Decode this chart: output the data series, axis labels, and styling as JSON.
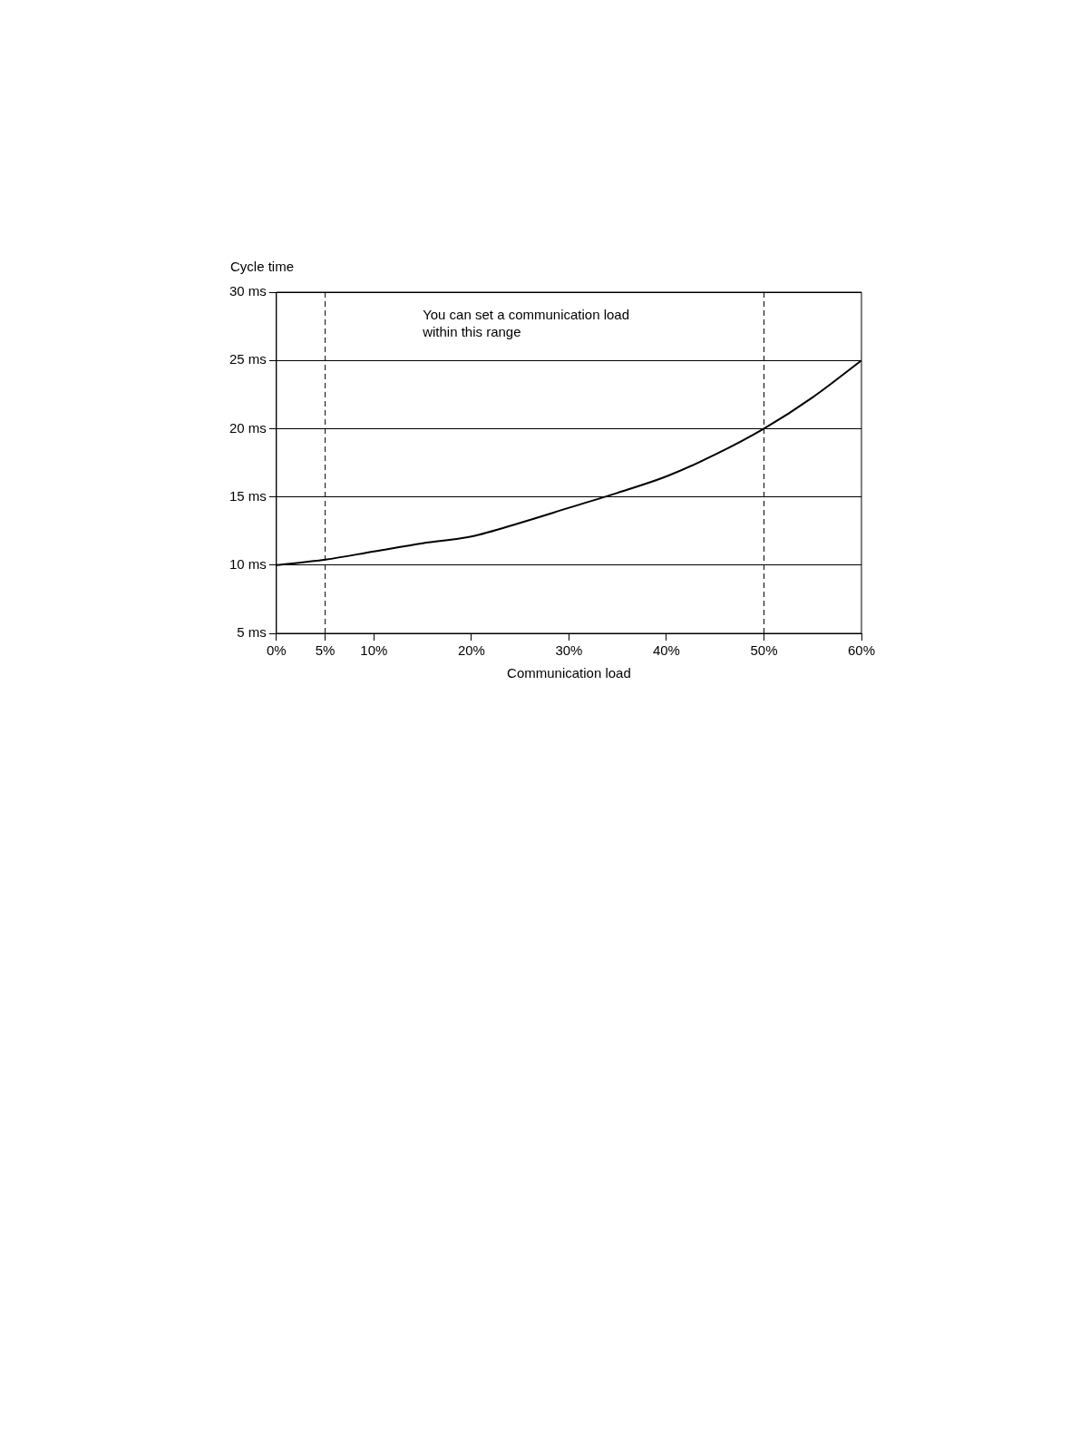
{
  "chart_data": {
    "type": "line",
    "ylabel": "Cycle time",
    "xlabel": "Communication load",
    "annotations": [
      "You can set a communication load within this range"
    ],
    "series": [
      {
        "color": "#000000",
        "x": [
          0,
          5,
          10,
          15,
          20,
          25,
          30,
          35,
          40,
          45,
          50,
          55,
          60
        ],
        "values": [
          10,
          10.4,
          11,
          11.6,
          12.1,
          13.1,
          14.2,
          15.3,
          16.5,
          18.1,
          20,
          22.3,
          25
        ]
      }
    ],
    "xlim": [
      0,
      60
    ],
    "xticks": [
      {
        "value": 0,
        "label": "0%"
      },
      {
        "value": 5,
        "label": "5%"
      },
      {
        "value": 10,
        "label": "10%"
      },
      {
        "value": 20,
        "label": "20%"
      },
      {
        "value": 30,
        "label": "30%"
      },
      {
        "value": 40,
        "label": "40%"
      },
      {
        "value": 50,
        "label": "50%"
      },
      {
        "value": 60,
        "label": "60%"
      }
    ],
    "ylim": [
      5,
      30
    ],
    "yticks": [
      {
        "value": 5,
        "label": "5 ms"
      },
      {
        "value": 10,
        "label": "10 ms"
      },
      {
        "value": 15,
        "label": "15 ms"
      },
      {
        "value": 20,
        "label": "20 ms"
      },
      {
        "value": 25,
        "label": "25 ms"
      },
      {
        "value": 30,
        "label": "30 ms"
      }
    ],
    "ref_lines": [
      {
        "axis": "x",
        "value": 5,
        "line_style": "dashed"
      },
      {
        "axis": "x",
        "value": 50,
        "line_style": "dashed"
      }
    ],
    "grid": "y",
    "legend": false,
    "marker": "none",
    "line_style": "solid"
  }
}
